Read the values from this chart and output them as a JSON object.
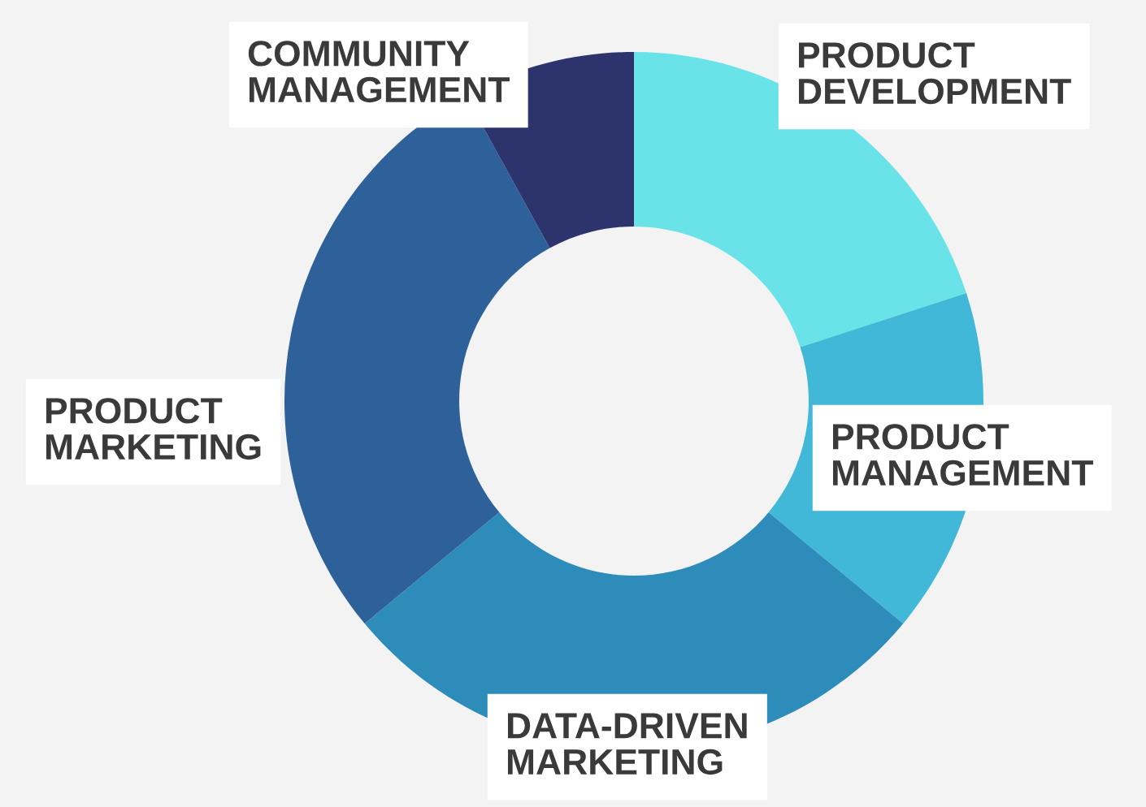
{
  "chart_data": {
    "type": "donut",
    "categories": [
      "PRODUCT\nDEVELOPMENT",
      "PRODUCT\nMANAGEMENT",
      "DATA-DRIVEN\nMARKETING",
      "PRODUCT\nMARKETING",
      "COMMUNITY\nMANAGEMENT"
    ],
    "values": [
      20,
      16,
      28,
      28,
      8
    ],
    "colors": [
      "#69e3e8",
      "#42b8d8",
      "#2e8cbb",
      "#2e6099",
      "#2d346d"
    ],
    "legend": false
  }
}
